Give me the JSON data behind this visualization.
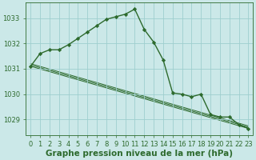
{
  "title": "Graphe pression niveau de la mer (hPa)",
  "background_color": "#cbe8e8",
  "grid_color": "#9ecece",
  "line_color": "#2d6a2d",
  "marker_color": "#2d6a2d",
  "xlim": [
    -0.5,
    23.5
  ],
  "ylim": [
    1028.4,
    1033.6
  ],
  "yticks": [
    1029,
    1030,
    1031,
    1032,
    1033
  ],
  "xticks": [
    0,
    1,
    2,
    3,
    4,
    5,
    6,
    7,
    8,
    9,
    10,
    11,
    12,
    13,
    14,
    15,
    16,
    17,
    18,
    19,
    20,
    21,
    22,
    23
  ],
  "main_x": [
    0,
    1,
    2,
    3,
    4,
    5,
    6,
    7,
    8,
    9,
    10,
    11,
    12,
    13,
    14,
    15,
    16,
    17,
    18,
    19,
    20,
    21,
    22,
    23
  ],
  "main_y": [
    1031.1,
    1031.6,
    1031.75,
    1031.75,
    1031.95,
    1032.2,
    1032.45,
    1032.7,
    1032.95,
    1033.05,
    1033.15,
    1033.35,
    1032.55,
    1032.05,
    1031.35,
    1030.05,
    1030.0,
    1029.9,
    1030.0,
    1029.2,
    1029.1,
    1029.1,
    1028.8,
    1028.65
  ],
  "trend_lines": [
    {
      "x": [
        0,
        23
      ],
      "y": [
        1031.1,
        1028.65
      ]
    },
    {
      "x": [
        0,
        23
      ],
      "y": [
        1031.15,
        1028.7
      ]
    },
    {
      "x": [
        0,
        23
      ],
      "y": [
        1031.2,
        1028.75
      ]
    }
  ],
  "font_color": "#2d6a2d",
  "title_fontsize": 7.5,
  "tick_fontsize": 6
}
